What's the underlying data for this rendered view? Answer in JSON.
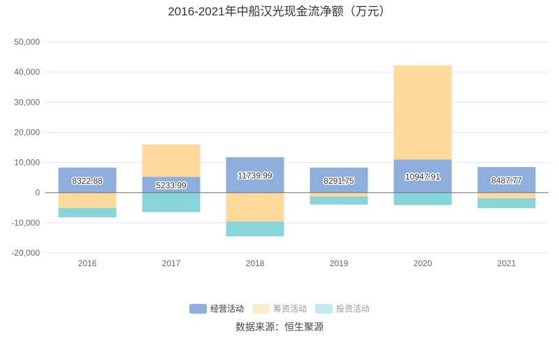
{
  "chart_data": {
    "type": "bar",
    "stacked": true,
    "title": "2016-2021年中船汉光现金流净额（万元）",
    "categories": [
      "2016",
      "2017",
      "2018",
      "2019",
      "2020",
      "2021"
    ],
    "series": [
      {
        "name": "经营活动",
        "color": "#8eaedb",
        "values": [
          8322.88,
          5233.99,
          11739.99,
          8291.75,
          10947.91,
          8487.77
        ],
        "labels": [
          "8322.88",
          "5233.99",
          "11739.99",
          "8291.75",
          "10947.91",
          "8487.77"
        ],
        "legend_color": "#8eaedb",
        "legend_text_color": "#333333"
      },
      {
        "name": "筹资活动",
        "color": "#fed99c",
        "values": [
          -5100,
          10770,
          -9600,
          -1250,
          31250,
          -1870
        ],
        "legend_color": "#feebcc",
        "legend_text_color": "#999999"
      },
      {
        "name": "投资活动",
        "color": "#88d5d9",
        "values": [
          -3100,
          -6490,
          -4900,
          -2730,
          -4140,
          -3280
        ],
        "legend_color": "#c3eaec",
        "legend_text_color": "#999999"
      }
    ],
    "ylim": [
      -20000,
      50000
    ],
    "yticks": [
      "-20,000",
      "-10,000",
      "0",
      "10,000",
      "20,000",
      "30,000",
      "40,000",
      "50,000"
    ],
    "ytick_values": [
      -20000,
      -10000,
      0,
      10000,
      20000,
      30000,
      40000,
      50000
    ],
    "grid": true,
    "legend_position": "bottom"
  },
  "source": "数据来源：恒生聚源"
}
